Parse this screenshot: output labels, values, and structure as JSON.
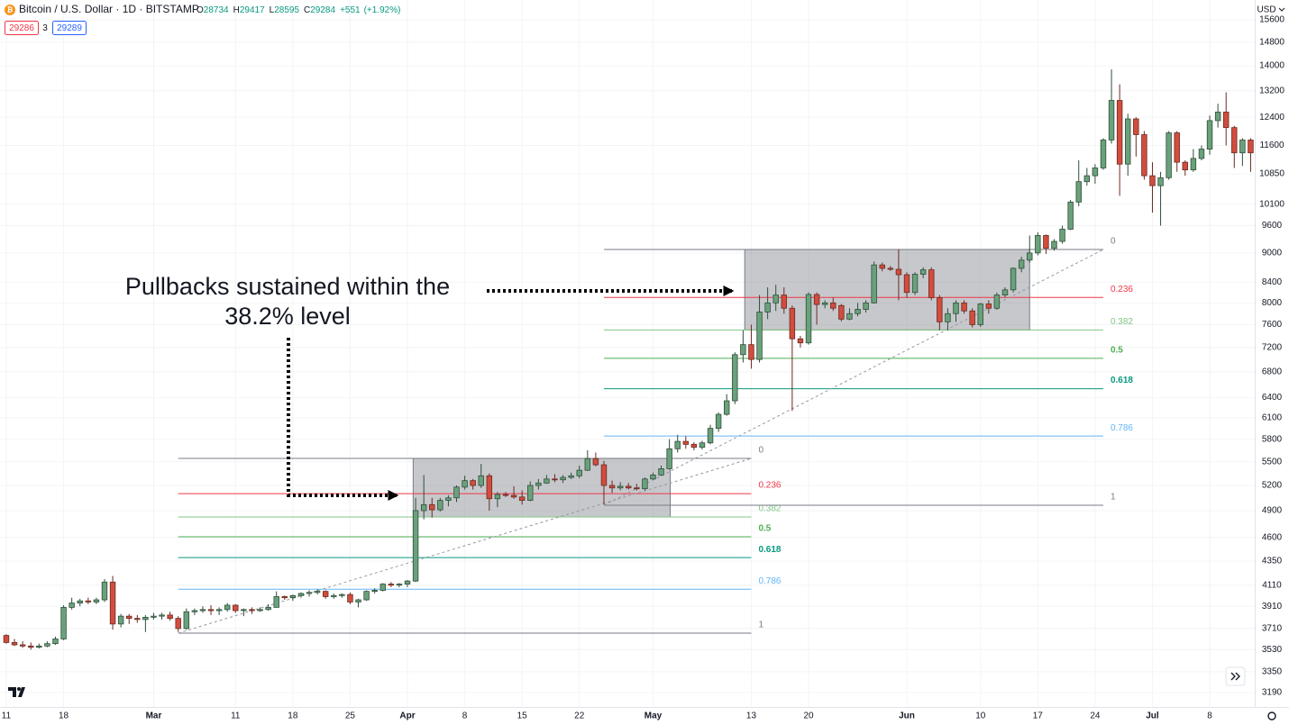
{
  "header": {
    "symbol": "Bitcoin / U.S. Dollar · 1D · BITSTAMP",
    "ohlc": [
      {
        "label": "O",
        "value": 28734
      },
      {
        "label": "H",
        "value": 29417
      },
      {
        "label": "L",
        "value": 28595
      },
      {
        "label": "C",
        "value": 29284
      }
    ],
    "change": "+551",
    "change_pct": "(+1.92%)",
    "bid": 29286,
    "spread": 3,
    "ask": 29289,
    "currency": "USD"
  },
  "annotation": {
    "lines": [
      "Pullbacks sustained within the",
      "38.2% level"
    ]
  },
  "chart_data": {
    "type": "candlestick",
    "log": true,
    "grid": true,
    "up_color": "#6aa17c",
    "up_border": "#2f4f3a",
    "down_color": "#d24d3e",
    "down_border": "#6b2a22",
    "ylim": [
      3083,
      16350
    ],
    "yticks": [
      3190,
      3350,
      3530,
      3710,
      3910,
      4110,
      4350,
      4600,
      4900,
      5200,
      5500,
      5800,
      6100,
      6400,
      6800,
      7200,
      7600,
      8000,
      8400,
      9000,
      9600,
      10100,
      10850,
      11600,
      12400,
      13200,
      14000,
      14800,
      15600
    ],
    "xlim": [
      -0.77,
      152.5
    ],
    "xticks": [
      {
        "value": 0,
        "label": "11"
      },
      {
        "value": 7,
        "label": "18"
      },
      {
        "value": 18,
        "label": "Mar"
      },
      {
        "value": 28,
        "label": "11"
      },
      {
        "value": 35,
        "label": "18"
      },
      {
        "value": 42,
        "label": "25"
      },
      {
        "value": 49,
        "label": "Apr"
      },
      {
        "value": 56,
        "label": "8"
      },
      {
        "value": 63,
        "label": "15"
      },
      {
        "value": 70,
        "label": "22"
      },
      {
        "value": 79,
        "label": "May"
      },
      {
        "value": 91,
        "label": "13"
      },
      {
        "value": 98,
        "label": "20"
      },
      {
        "value": 110,
        "label": "Jun"
      },
      {
        "value": 119,
        "label": "10"
      },
      {
        "value": 126,
        "label": "17"
      },
      {
        "value": 133,
        "label": "24"
      },
      {
        "value": 140,
        "label": "Jul"
      },
      {
        "value": 147,
        "label": "8"
      }
    ],
    "x": [
      0,
      1,
      2,
      3,
      4,
      5,
      6,
      7,
      8,
      9,
      10,
      11,
      12,
      13,
      14,
      15,
      16,
      17,
      18,
      19,
      20,
      21,
      22,
      23,
      24,
      25,
      26,
      27,
      28,
      29,
      30,
      31,
      32,
      33,
      34,
      35,
      36,
      37,
      38,
      39,
      40,
      41,
      42,
      43,
      44,
      45,
      46,
      47,
      48,
      49,
      50,
      51,
      52,
      53,
      54,
      55,
      56,
      57,
      58,
      59,
      60,
      61,
      62,
      63,
      64,
      65,
      66,
      67,
      68,
      69,
      70,
      71,
      72,
      73,
      74,
      75,
      76,
      77,
      78,
      79,
      80,
      81,
      82,
      83,
      84,
      85,
      86,
      87,
      88,
      89,
      90,
      91,
      92,
      93,
      94,
      95,
      96,
      97,
      98,
      99,
      100,
      101,
      102,
      103,
      104,
      105,
      106,
      107,
      108,
      109,
      110,
      111,
      112,
      113,
      114,
      115,
      116,
      117,
      118,
      119,
      120,
      121,
      122,
      123,
      124,
      125,
      126,
      127,
      128,
      129,
      130,
      131,
      132,
      133,
      134,
      135,
      136,
      137,
      138,
      139,
      140,
      141,
      142,
      143,
      144,
      145,
      146,
      147,
      148,
      149,
      150,
      151,
      152
    ],
    "candles": [
      [
        3650,
        3660,
        3580,
        3590
      ],
      [
        3590,
        3620,
        3560,
        3570
      ],
      [
        3570,
        3600,
        3545,
        3560
      ],
      [
        3560,
        3590,
        3530,
        3550
      ],
      [
        3550,
        3580,
        3540,
        3560
      ],
      [
        3560,
        3600,
        3550,
        3580
      ],
      [
        3580,
        3640,
        3570,
        3620
      ],
      [
        3620,
        3920,
        3610,
        3900
      ],
      [
        3900,
        3990,
        3880,
        3940
      ],
      [
        3940,
        3980,
        3910,
        3960
      ],
      [
        3960,
        3990,
        3930,
        3950
      ],
      [
        3950,
        3990,
        3930,
        3970
      ],
      [
        3970,
        4170,
        3950,
        4140
      ],
      [
        4140,
        4200,
        3700,
        3750
      ],
      [
        3750,
        3840,
        3720,
        3820
      ],
      [
        3820,
        3840,
        3750,
        3800
      ],
      [
        3800,
        3830,
        3760,
        3790
      ],
      [
        3790,
        3830,
        3680,
        3810
      ],
      [
        3810,
        3850,
        3790,
        3820
      ],
      [
        3820,
        3850,
        3790,
        3830
      ],
      [
        3830,
        3860,
        3780,
        3800
      ],
      [
        3800,
        3820,
        3680,
        3710
      ],
      [
        3710,
        3890,
        3700,
        3860
      ],
      [
        3860,
        3890,
        3830,
        3870
      ],
      [
        3870,
        3910,
        3850,
        3880
      ],
      [
        3880,
        3920,
        3830,
        3870
      ],
      [
        3870,
        3900,
        3830,
        3880
      ],
      [
        3880,
        3940,
        3860,
        3920
      ],
      [
        3920,
        3930,
        3850,
        3870
      ],
      [
        3870,
        3890,
        3820,
        3880
      ],
      [
        3880,
        3900,
        3840,
        3870
      ],
      [
        3870,
        3900,
        3860,
        3880
      ],
      [
        3880,
        3930,
        3870,
        3900
      ],
      [
        3900,
        4050,
        3900,
        4000
      ],
      [
        4000,
        4010,
        3970,
        3990
      ],
      [
        3990,
        4020,
        3960,
        4010
      ],
      [
        4010,
        4040,
        3990,
        4030
      ],
      [
        4030,
        4060,
        4000,
        4040
      ],
      [
        4040,
        4070,
        4020,
        4050
      ],
      [
        4050,
        4060,
        3980,
        4000
      ],
      [
        4000,
        4030,
        3980,
        4010
      ],
      [
        4010,
        4030,
        3990,
        4020
      ],
      [
        4020,
        4040,
        3930,
        3950
      ],
      [
        3950,
        3980,
        3900,
        3970
      ],
      [
        3970,
        4060,
        3960,
        4050
      ],
      [
        4050,
        4080,
        4030,
        4060
      ],
      [
        4060,
        4130,
        4050,
        4120
      ],
      [
        4120,
        4140,
        4090,
        4110
      ],
      [
        4110,
        4130,
        4090,
        4120
      ],
      [
        4120,
        4160,
        4090,
        4150
      ],
      [
        4150,
        5050,
        4140,
        4900
      ],
      [
        4900,
        5330,
        4800,
        4970
      ],
      [
        4970,
        5050,
        4820,
        4910
      ],
      [
        4910,
        5050,
        4890,
        5020
      ],
      [
        5020,
        5080,
        4950,
        5050
      ],
      [
        5050,
        5200,
        5000,
        5180
      ],
      [
        5180,
        5320,
        5150,
        5260
      ],
      [
        5260,
        5280,
        5150,
        5200
      ],
      [
        5200,
        5470,
        5170,
        5320
      ],
      [
        5320,
        5350,
        4900,
        5040
      ],
      [
        5040,
        5120,
        4940,
        5090
      ],
      [
        5090,
        5120,
        5060,
        5080
      ],
      [
        5080,
        5190,
        5040,
        5060
      ],
      [
        5060,
        5140,
        4970,
        5020
      ],
      [
        5020,
        5250,
        5010,
        5200
      ],
      [
        5200,
        5280,
        5150,
        5230
      ],
      [
        5230,
        5330,
        5220,
        5280
      ],
      [
        5280,
        5340,
        5240,
        5270
      ],
      [
        5270,
        5330,
        5230,
        5300
      ],
      [
        5300,
        5360,
        5280,
        5320
      ],
      [
        5320,
        5450,
        5290,
        5390
      ],
      [
        5390,
        5650,
        5380,
        5540
      ],
      [
        5540,
        5620,
        5440,
        5460
      ],
      [
        5460,
        5510,
        4970,
        5200
      ],
      [
        5200,
        5260,
        5110,
        5170
      ],
      [
        5170,
        5240,
        5140,
        5190
      ],
      [
        5190,
        5230,
        5150,
        5170
      ],
      [
        5170,
        5220,
        5140,
        5160
      ],
      [
        5160,
        5300,
        5140,
        5280
      ],
      [
        5280,
        5360,
        5270,
        5330
      ],
      [
        5330,
        5450,
        5320,
        5410
      ],
      [
        5410,
        5800,
        5400,
        5670
      ],
      [
        5670,
        5860,
        5620,
        5770
      ],
      [
        5770,
        5840,
        5670,
        5730
      ],
      [
        5730,
        5760,
        5650,
        5690
      ],
      [
        5690,
        5780,
        5660,
        5750
      ],
      [
        5750,
        6000,
        5730,
        5950
      ],
      [
        5950,
        6180,
        5900,
        6150
      ],
      [
        6150,
        6450,
        6130,
        6350
      ],
      [
        6350,
        7120,
        6300,
        7080
      ],
      [
        7080,
        7500,
        6950,
        7250
      ],
      [
        7250,
        7600,
        6850,
        7000
      ],
      [
        7000,
        8150,
        6950,
        7830
      ],
      [
        7830,
        8300,
        7700,
        8000
      ],
      [
        8000,
        8350,
        7850,
        8150
      ],
      [
        8150,
        8300,
        7800,
        7900
      ],
      [
        7900,
        7950,
        6200,
        7350
      ],
      [
        7350,
        7400,
        7200,
        7280
      ],
      [
        7280,
        8200,
        7250,
        8160
      ],
      [
        8160,
        8200,
        7600,
        7970
      ],
      [
        7970,
        8050,
        7900,
        8000
      ],
      [
        8000,
        8100,
        7850,
        7900
      ],
      [
        7950,
        7980,
        7660,
        7700
      ],
      [
        7700,
        7900,
        7680,
        7800
      ],
      [
        7800,
        8000,
        7750,
        7880
      ],
      [
        7880,
        8050,
        7820,
        8000
      ],
      [
        8000,
        8820,
        7990,
        8750
      ],
      [
        8750,
        8800,
        8620,
        8680
      ],
      [
        8680,
        8730,
        8630,
        8660
      ],
      [
        8660,
        9080,
        8050,
        8550
      ],
      [
        8550,
        8600,
        8100,
        8200
      ],
      [
        8200,
        8600,
        8150,
        8560
      ],
      [
        8560,
        8700,
        8480,
        8650
      ],
      [
        8650,
        8700,
        8050,
        8100
      ],
      [
        8100,
        8150,
        7500,
        7650
      ],
      [
        7650,
        7900,
        7500,
        7800
      ],
      [
        7800,
        8050,
        7650,
        8000
      ],
      [
        8000,
        8050,
        7800,
        7850
      ],
      [
        7850,
        7900,
        7550,
        7600
      ],
      [
        7600,
        8000,
        7560,
        7980
      ],
      [
        7980,
        8050,
        7800,
        7900
      ],
      [
        7900,
        8200,
        7870,
        8150
      ],
      [
        8150,
        8300,
        8100,
        8250
      ],
      [
        8250,
        8700,
        8200,
        8680
      ],
      [
        8680,
        8920,
        8600,
        8850
      ],
      [
        8850,
        9380,
        8800,
        9000
      ],
      [
        9000,
        9450,
        8950,
        9380
      ],
      [
        9380,
        9400,
        8980,
        9100
      ],
      [
        9100,
        9300,
        9050,
        9250
      ],
      [
        9250,
        9600,
        9200,
        9520
      ],
      [
        9520,
        10200,
        9500,
        10150
      ],
      [
        10150,
        11200,
        10050,
        10650
      ],
      [
        10650,
        11000,
        10550,
        10800
      ],
      [
        10800,
        11100,
        10600,
        11000
      ],
      [
        11000,
        11800,
        10950,
        11750
      ],
      [
        11750,
        13880,
        11650,
        12900
      ],
      [
        12900,
        13400,
        10300,
        11100
      ],
      [
        11100,
        12500,
        10800,
        12350
      ],
      [
        12350,
        12400,
        11300,
        11900
      ],
      [
        11900,
        12000,
        10700,
        10800
      ],
      [
        10800,
        11150,
        9900,
        10550
      ],
      [
        10550,
        10900,
        9600,
        10750
      ],
      [
        10750,
        12000,
        10700,
        11950
      ],
      [
        11950,
        12000,
        10900,
        11150
      ],
      [
        11150,
        11200,
        10800,
        10950
      ],
      [
        10950,
        11500,
        10900,
        11250
      ],
      [
        11250,
        11600,
        11200,
        11500
      ],
      [
        11500,
        12450,
        11350,
        12300
      ],
      [
        12300,
        12800,
        12100,
        12550
      ],
      [
        12550,
        13150,
        11600,
        12100
      ],
      [
        12100,
        12150,
        11000,
        11400
      ],
      [
        11400,
        11800,
        11050,
        11750
      ],
      [
        11750,
        11800,
        10900,
        11400
      ]
    ],
    "fib_levels": [
      {
        "value": 0,
        "color": "#787b86"
      },
      {
        "value": 0.236,
        "color": "#f23645"
      },
      {
        "value": 0.382,
        "color": "#81c784"
      },
      {
        "value": 0.5,
        "color": "#4caf50"
      },
      {
        "value": 0.618,
        "color": "#089981"
      },
      {
        "value": 0.786,
        "color": "#64b5f6"
      },
      {
        "value": 1,
        "color": "#787b86"
      }
    ],
    "fibs": [
      {
        "x": [
          21,
          91
        ],
        "high": 5543,
        "low": 3670,
        "box_x": [
          49.7,
          81.1
        ],
        "box_levels": [
          0,
          0.382
        ]
      },
      {
        "x": [
          73,
          134
        ],
        "high": 9075,
        "low": 4963,
        "box_x": [
          90.2,
          125
        ],
        "box_levels": [
          0,
          0.382
        ]
      }
    ]
  }
}
